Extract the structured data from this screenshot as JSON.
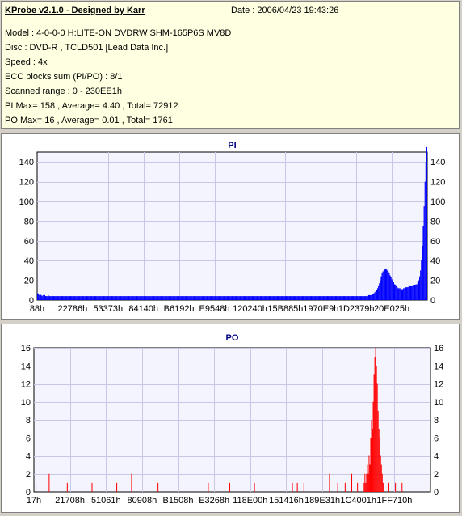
{
  "header": {
    "title": "KProbe v2.1.0 - Designed by Karr",
    "date": "Date : 2006/04/23 19:43:26",
    "lines": [
      "Model : 4-0-0-0 H:LITE-ON DVDRW SHM-165P6S MV8D",
      "Disc : DVD-R , TCLD501 [Lead Data Inc.]",
      "Speed : 4x",
      "ECC blocks sum (PI/PO) : 8/1",
      "Scanned range : 0 - 230EE1h",
      "PI Max= 158 , Average= 4.40 , Total= 72912",
      "PO Max= 16 , Average= 0.01 , Total= 1761"
    ]
  },
  "colors": {
    "pi": "#0000ff",
    "po": "#ff0000",
    "title": "#000080",
    "plot_bg": "#f4f4ff"
  },
  "chart_data": [
    {
      "type": "bar",
      "title": "PI",
      "x_ticks": [
        "88h",
        "22786h",
        "53373h",
        "84140h",
        "B6192h",
        "E9548h",
        "120240h",
        "15B885h",
        "1970E9h",
        "1D2379h",
        "20E025h"
      ],
      "y_ticks": [
        0,
        20,
        40,
        60,
        80,
        100,
        120,
        140
      ],
      "ylim": [
        0,
        150
      ],
      "grid": true,
      "values": [
        7,
        6,
        5,
        6,
        5,
        4,
        5,
        5,
        5,
        4,
        4,
        4,
        5,
        4,
        4,
        4,
        4,
        4,
        4,
        4,
        4,
        4,
        4,
        4,
        4,
        4,
        4,
        4,
        4,
        4,
        4,
        4,
        4,
        4,
        4,
        4,
        4,
        4,
        4,
        4,
        4,
        4,
        4,
        4,
        4,
        4,
        4,
        4,
        4,
        4,
        4,
        4,
        4,
        4,
        4,
        4,
        4,
        4,
        4,
        4,
        4,
        4,
        4,
        4,
        4,
        4,
        4,
        4,
        4,
        4,
        4,
        4,
        4,
        4,
        4,
        4,
        4,
        4,
        4,
        4,
        4,
        4,
        4,
        4,
        4,
        4,
        4,
        4,
        4,
        4,
        4,
        4,
        4,
        4,
        4,
        4,
        4,
        4,
        4,
        4,
        4,
        4,
        4,
        4,
        4,
        4,
        4,
        4,
        4,
        4,
        4,
        4,
        4,
        4,
        4,
        4,
        4,
        4,
        4,
        4,
        4,
        4,
        4,
        4,
        4,
        4,
        4,
        4,
        4,
        4,
        4,
        4,
        4,
        4,
        4,
        4,
        4,
        4,
        4,
        4,
        4,
        4,
        4,
        4,
        4,
        4,
        4,
        4,
        4,
        4,
        4,
        4,
        4,
        4,
        4,
        4,
        4,
        4,
        4,
        4,
        4,
        4,
        4,
        4,
        4,
        4,
        4,
        4,
        4,
        4,
        4,
        4,
        4,
        4,
        4,
        4,
        4,
        4,
        4,
        4,
        4,
        4,
        4,
        4,
        4,
        4,
        4,
        4,
        4,
        4,
        4,
        4,
        4,
        4,
        4,
        4,
        4,
        4,
        4,
        4,
        4,
        4,
        4,
        4,
        4,
        4,
        4,
        4,
        4,
        4,
        4,
        4,
        4,
        4,
        4,
        4,
        4,
        4,
        4,
        4,
        4,
        4,
        4,
        4,
        4,
        4,
        4,
        4,
        4,
        4,
        4,
        4,
        4,
        4,
        4,
        4,
        4,
        4,
        4,
        4,
        4,
        4,
        4,
        4,
        4,
        4,
        4,
        4,
        4,
        4,
        4,
        4,
        4,
        4,
        4,
        4,
        4,
        4,
        4,
        4,
        4,
        4,
        4,
        4,
        4,
        4,
        4,
        4,
        4,
        4,
        4,
        4,
        4,
        4,
        4,
        4,
        4,
        4,
        4,
        4,
        4,
        4,
        4,
        4,
        4,
        4,
        4,
        4,
        4,
        4,
        4,
        4,
        4,
        4,
        4,
        4,
        4,
        4,
        4,
        4,
        4,
        4,
        4,
        4,
        4,
        4,
        4,
        4,
        4,
        4,
        4,
        4,
        4,
        4,
        4,
        4,
        4,
        4,
        4,
        4,
        4,
        4,
        4,
        4,
        4,
        4,
        4,
        4,
        4,
        4,
        4,
        4,
        4,
        4,
        4,
        4,
        4,
        4,
        4,
        4,
        4,
        4,
        4,
        4,
        4,
        4,
        4,
        4,
        4,
        4,
        4,
        4,
        4,
        4,
        4,
        4,
        4,
        4,
        4,
        4,
        4,
        4,
        4,
        4,
        4,
        4,
        4,
        4,
        4,
        4,
        5,
        5,
        5,
        5,
        6,
        6,
        7,
        8,
        9,
        10,
        12,
        14,
        17,
        20,
        24,
        27,
        29,
        30,
        31,
        32,
        31,
        30,
        29,
        27,
        25,
        23,
        21,
        19,
        18,
        16,
        15,
        14,
        13,
        12,
        12,
        12,
        11,
        11,
        11,
        12,
        12,
        13,
        13,
        13,
        13,
        14,
        14,
        14,
        14,
        14,
        15,
        15,
        15,
        16,
        16,
        18,
        20,
        24,
        30,
        40,
        55,
        75,
        95,
        120,
        140,
        155
      ]
    },
    {
      "type": "bar",
      "title": "PO",
      "x_ticks": [
        "17h",
        "21708h",
        "51061h",
        "80908h",
        "B1508h",
        "E3268h",
        "118E00h",
        "151416h",
        "189E31h",
        "1C4001h",
        "1FF710h"
      ],
      "y_ticks": [
        0,
        2,
        4,
        6,
        8,
        10,
        12,
        14,
        16
      ],
      "ylim": [
        0,
        16
      ],
      "grid": true,
      "values": [
        0,
        0,
        1,
        0,
        0,
        0,
        0,
        0,
        0,
        0,
        0,
        0,
        0,
        0,
        0,
        0,
        0,
        0,
        2,
        0,
        0,
        0,
        0,
        0,
        0,
        0,
        0,
        0,
        0,
        0,
        0,
        0,
        0,
        0,
        0,
        0,
        0,
        0,
        0,
        0,
        1,
        0,
        0,
        0,
        0,
        0,
        0,
        0,
        0,
        0,
        0,
        0,
        0,
        0,
        0,
        0,
        0,
        0,
        0,
        0,
        0,
        0,
        0,
        0,
        0,
        0,
        0,
        0,
        0,
        0,
        1,
        0,
        0,
        0,
        0,
        0,
        0,
        0,
        0,
        0,
        0,
        0,
        0,
        0,
        0,
        0,
        0,
        0,
        0,
        0,
        0,
        0,
        0,
        0,
        0,
        0,
        0,
        0,
        0,
        0,
        1,
        0,
        0,
        0,
        0,
        0,
        0,
        0,
        0,
        0,
        0,
        0,
        0,
        0,
        0,
        0,
        0,
        0,
        2,
        0,
        0,
        0,
        0,
        0,
        0,
        0,
        0,
        0,
        0,
        0,
        0,
        0,
        0,
        0,
        0,
        0,
        0,
        0,
        0,
        0,
        0,
        0,
        0,
        0,
        0,
        0,
        0,
        0,
        0,
        0,
        1,
        0,
        0,
        0,
        0,
        0,
        0,
        0,
        0,
        0,
        0,
        0,
        0,
        0,
        0,
        0,
        0,
        0,
        0,
        0,
        0,
        0,
        0,
        0,
        0,
        0,
        0,
        0,
        0,
        0,
        0,
        0,
        0,
        0,
        0,
        0,
        0,
        0,
        0,
        0,
        0,
        0,
        0,
        0,
        0,
        0,
        0,
        0,
        0,
        0,
        0,
        0,
        0,
        0,
        0,
        0,
        0,
        0,
        0,
        0,
        0,
        1,
        0,
        0,
        0,
        0,
        0,
        0,
        0,
        0,
        0,
        0,
        0,
        0,
        0,
        0,
        0,
        0,
        0,
        0,
        0,
        0,
        0,
        0,
        0,
        0,
        0,
        1,
        0,
        0,
        0,
        0,
        0,
        0,
        0,
        0,
        0,
        0,
        0,
        0,
        0,
        0,
        0,
        0,
        0,
        0,
        0,
        0,
        0,
        0,
        0,
        0,
        0,
        0,
        0,
        0,
        0,
        1,
        0,
        0,
        0,
        0,
        0,
        0,
        0,
        0,
        0,
        0,
        0,
        0,
        0,
        0,
        0,
        0,
        0,
        0,
        0,
        0,
        0,
        0,
        0,
        0,
        0,
        0,
        0,
        0,
        0,
        0,
        0,
        0,
        0,
        0,
        0,
        0,
        0,
        0,
        0,
        0,
        0,
        0,
        0,
        0,
        0,
        1,
        0,
        0,
        0,
        0,
        0,
        1,
        0,
        0,
        0,
        0,
        0,
        0,
        0,
        1,
        0,
        0,
        0,
        0,
        0,
        0,
        0,
        0,
        0,
        0,
        0,
        0,
        0,
        0,
        0,
        0,
        0,
        0,
        0,
        0,
        0,
        0,
        0,
        0,
        0,
        0,
        0,
        0,
        0,
        0,
        2,
        0,
        0,
        0,
        0,
        0,
        0,
        0,
        0,
        0,
        1,
        0,
        0,
        0,
        0,
        0,
        0,
        0,
        0,
        1,
        0,
        0,
        0,
        0,
        0,
        0,
        0,
        2,
        0,
        0,
        0,
        0,
        0,
        0,
        1,
        0,
        0,
        0,
        0,
        0,
        0,
        0,
        1,
        2,
        1,
        2,
        3,
        2,
        4,
        3,
        6,
        8,
        7,
        10,
        13,
        15,
        16,
        14,
        12,
        9,
        7,
        6,
        4,
        3,
        2,
        1,
        1,
        0,
        0,
        0,
        0,
        0,
        1,
        0,
        0,
        0,
        0,
        0,
        0,
        0,
        1,
        0,
        0,
        0,
        0,
        0,
        0,
        0,
        1,
        0,
        0,
        0,
        0,
        0,
        0,
        0,
        0,
        0,
        0,
        0,
        0,
        0,
        0,
        0,
        0,
        0,
        0,
        0,
        0,
        0,
        0,
        0,
        0,
        0,
        0,
        0,
        0,
        0,
        0,
        0,
        0,
        0,
        1
      ]
    }
  ]
}
